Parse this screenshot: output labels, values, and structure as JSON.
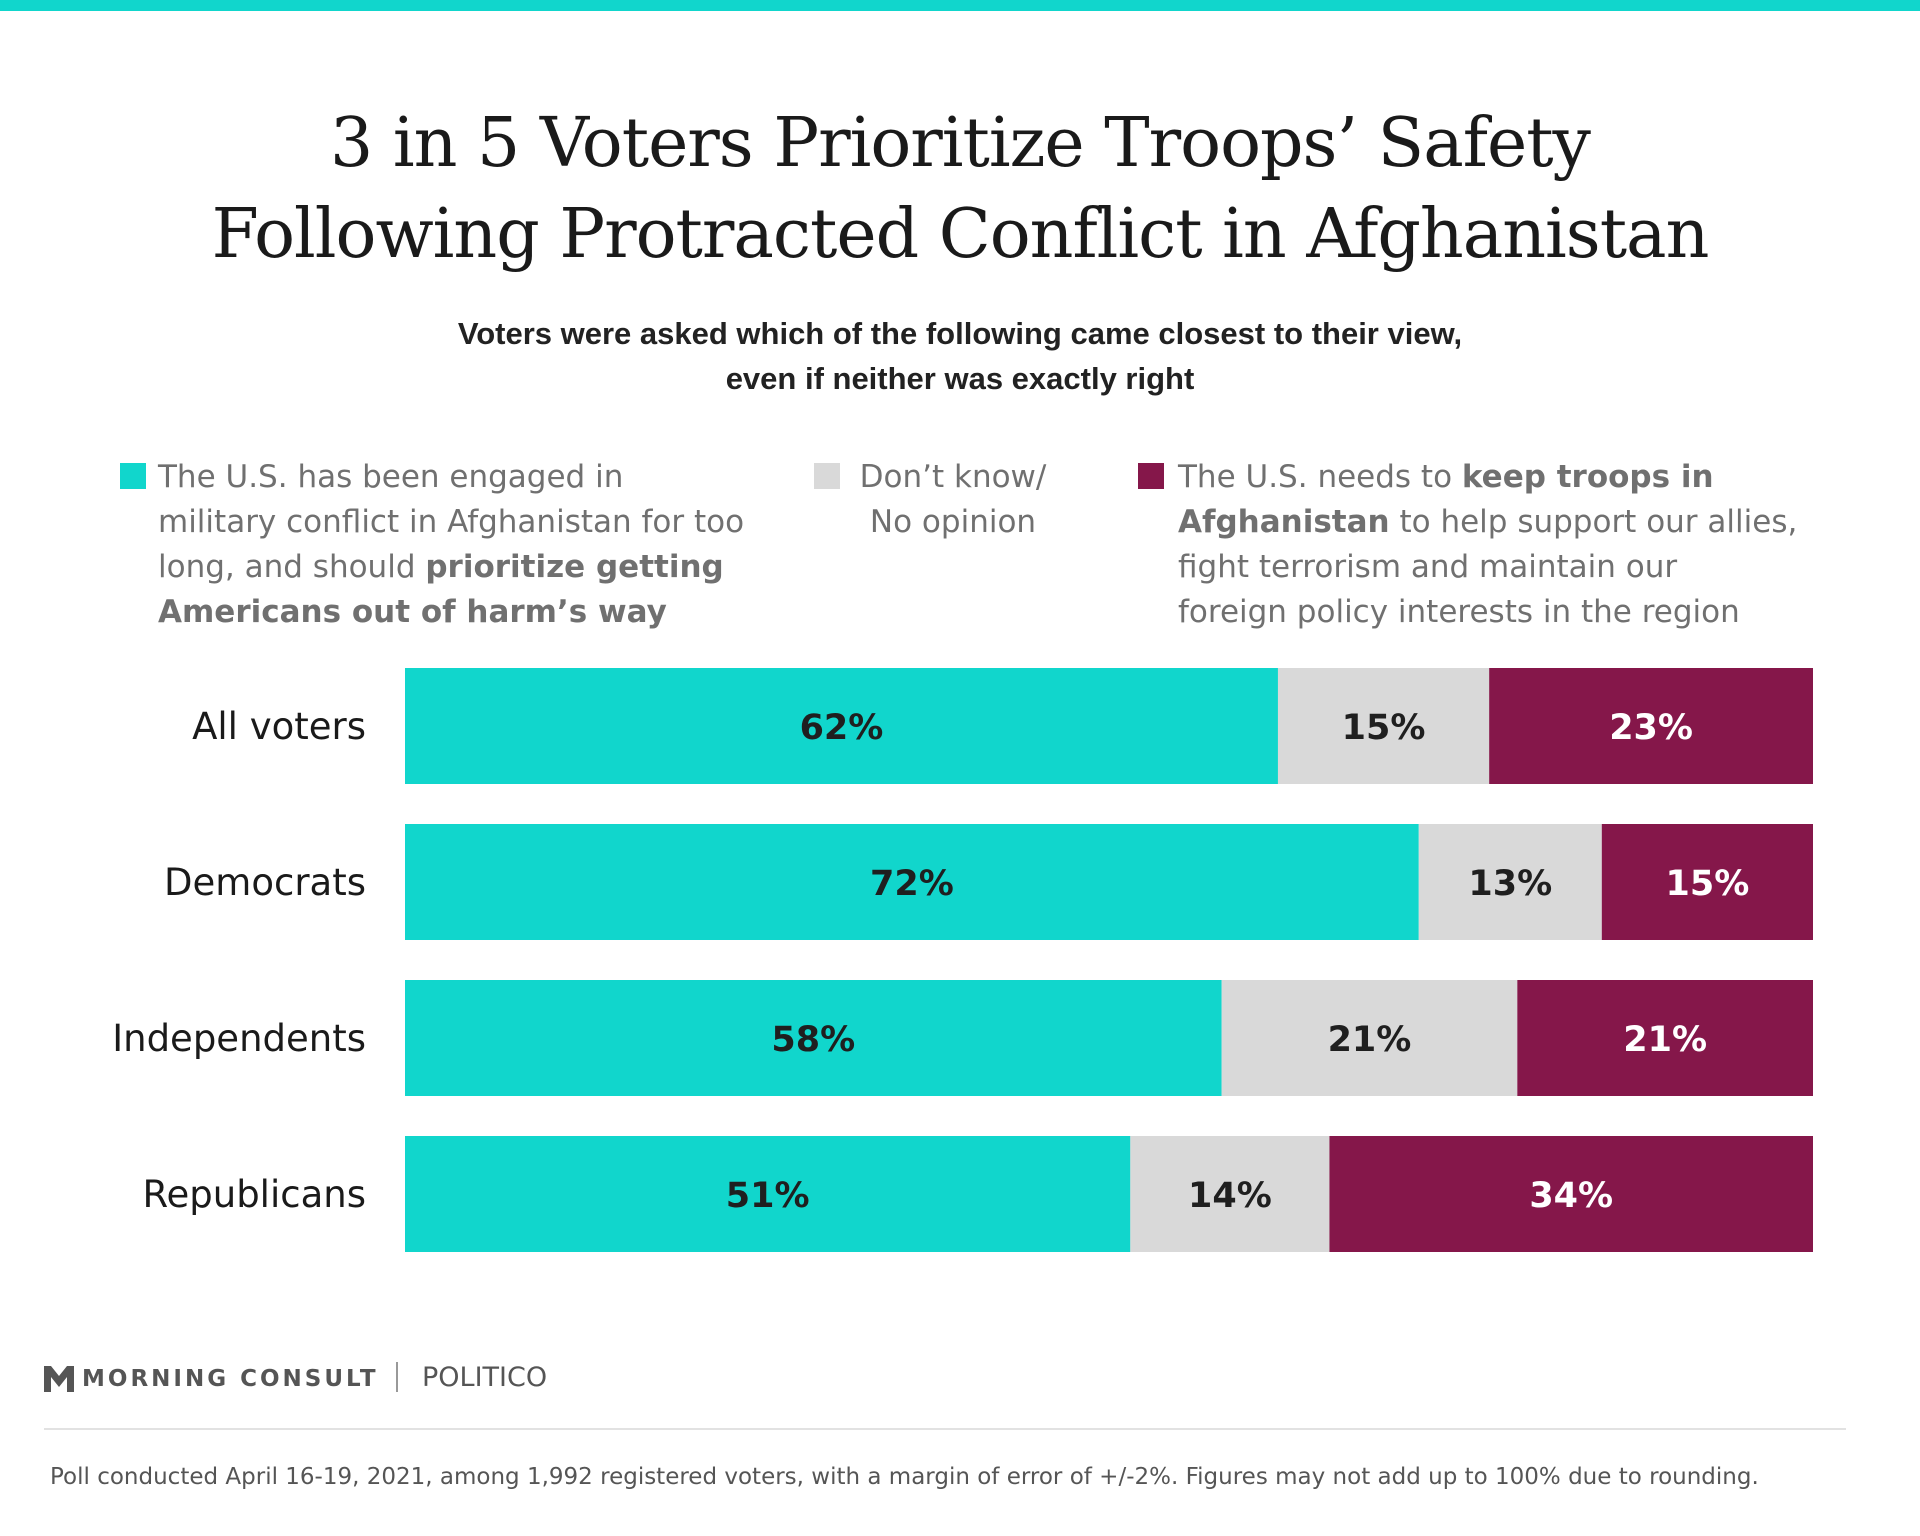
{
  "title_lines": [
    "3 in 5 Voters Prioritize Troops’ Safety",
    "Following Protracted Conflict in Afghanistan"
  ],
  "subtitle_lines": [
    "Voters were asked which of the following came closest to their view,",
    "even if neither was exactly right"
  ],
  "legend": [
    {
      "color": "#11d6cc",
      "lines": [
        [
          {
            "t": "The U.S. has been engaged in",
            "b": false
          }
        ],
        [
          {
            "t": "military conflict in Afghanistan for too",
            "b": false
          }
        ],
        [
          {
            "t": "long, and should ",
            "b": false
          },
          {
            "t": "prioritize getting",
            "b": true
          }
        ],
        [
          {
            "t": "Americans out of harm’s way",
            "b": true
          }
        ]
      ]
    },
    {
      "color": "#d9d9d9",
      "lines": [
        [
          {
            "t": "Don’t know/",
            "b": false
          }
        ],
        [
          {
            "t": "No opinion",
            "b": false
          }
        ]
      ]
    },
    {
      "color": "#85174a",
      "lines": [
        [
          {
            "t": "The U.S. needs to ",
            "b": false
          },
          {
            "t": "keep troops in",
            "b": true
          }
        ],
        [
          {
            "t": "Afghanistan",
            "b": true
          },
          {
            "t": " to help support our allies,",
            "b": false
          }
        ],
        [
          {
            "t": "fight terrorism and maintain our",
            "b": false
          }
        ],
        [
          {
            "t": "foreign policy interests in the region",
            "b": false
          }
        ]
      ]
    }
  ],
  "chart_data": {
    "type": "bar",
    "orientation": "horizontal",
    "stacked": true,
    "categories": [
      "All voters",
      "Democrats",
      "Independents",
      "Republicans"
    ],
    "series": [
      {
        "name": "The U.S. has been engaged in military conflict in Afghanistan for too long, and should prioritize getting Americans out of harm’s way",
        "values": [
          62,
          72,
          58,
          51
        ],
        "color": "#11d6cc",
        "label_color": "#1f1f1f"
      },
      {
        "name": "Don’t know/ No opinion",
        "values": [
          15,
          13,
          21,
          14
        ],
        "color": "#d9d9d9",
        "label_color": "#1f1f1f"
      },
      {
        "name": "The U.S. needs to keep troops in Afghanistan to help support our allies, fight terrorism and maintain our foreign policy interests in the region",
        "values": [
          23,
          15,
          21,
          34
        ],
        "color": "#85174a",
        "label_color": "#ffffff"
      }
    ],
    "value_suffix": "%",
    "xlim": [
      0,
      100
    ],
    "grid": false,
    "legend": "top"
  },
  "branding": {
    "left": "MORNING CONSULT",
    "right": "POLITICO"
  },
  "footnote": "Poll conducted April 16-19, 2021, among 1,992 registered voters, with a margin of error of +/-2%. Figures may not add up to 100% due to rounding."
}
